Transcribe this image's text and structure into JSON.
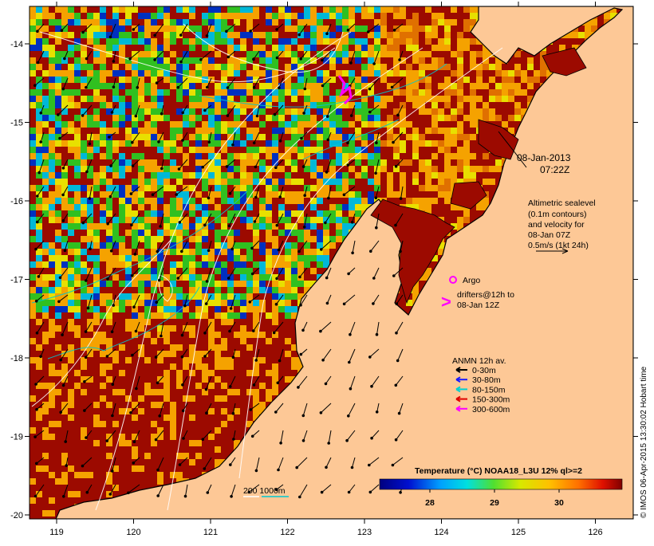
{
  "map": {
    "date": "08-Jan-2013",
    "time": "07:22Z",
    "altimetry_lines": [
      "Altimetric sealevel",
      "(0.1m contours)",
      "and velocity for",
      "08-Jan 07Z",
      "0.5m/s (1kt 24h)"
    ],
    "argo_label": "Argo",
    "drifters_lines": [
      "drifters@12h to",
      "08-Jan 12Z"
    ],
    "anmn_title": "ANMN 12h av.",
    "anmn_legend": [
      {
        "label": "0-30m",
        "color": "#000000"
      },
      {
        "label": "30-80m",
        "color": "#1a1aff"
      },
      {
        "label": "80-150m",
        "color": "#00d0d0"
      },
      {
        "label": "150-300m",
        "color": "#e00000"
      },
      {
        "label": "300-600m",
        "color": "#ff00ff"
      }
    ],
    "isobath_label": "200  1000m",
    "colorbar_title": "Temperature (°C) NOAA18_L3U 12% ql>=2",
    "colorbar_ticks": [
      "28",
      "29",
      "30"
    ],
    "credit": "© IMOS 06-Apr-2015 13:30:02 Hobart time",
    "lon_ticks": [
      "119",
      "120",
      "121",
      "122",
      "123",
      "124",
      "125",
      "126"
    ],
    "lat_ticks": [
      "-14",
      "-15",
      "-16",
      "-17",
      "-18",
      "-19",
      "-20"
    ],
    "colors": {
      "land": "#fdc896",
      "deep_red": "#9c0a00",
      "orange": "#f5a200",
      "yellow": "#e8e000",
      "green": "#30c020",
      "cyan": "#00b8d8",
      "blue": "#0030c0"
    }
  }
}
